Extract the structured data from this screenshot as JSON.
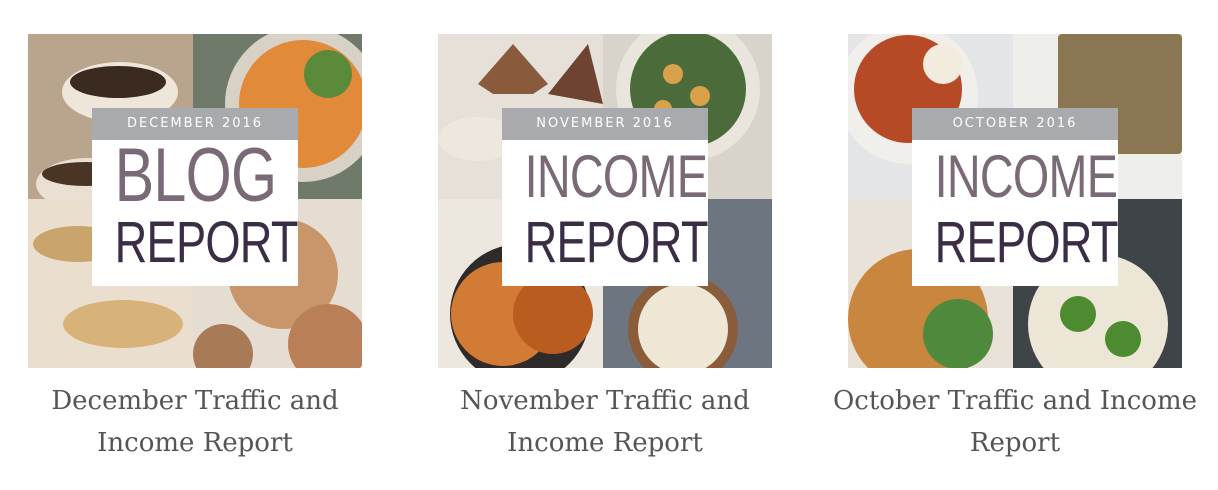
{
  "posts": [
    {
      "badge_date": "DECEMBER 2016",
      "badge_title": "BLOG",
      "badge_subtitle": "REPORT",
      "caption": "December Traffic and Income Report"
    },
    {
      "badge_date": "NOVEMBER 2016",
      "badge_title": "INCOME",
      "badge_subtitle": "REPORT",
      "caption": "November Traffic and Income Report"
    },
    {
      "badge_date": "OCTOBER 2016",
      "badge_title": "INCOME",
      "badge_subtitle": "REPORT",
      "caption": "October Traffic and Income Report"
    }
  ]
}
